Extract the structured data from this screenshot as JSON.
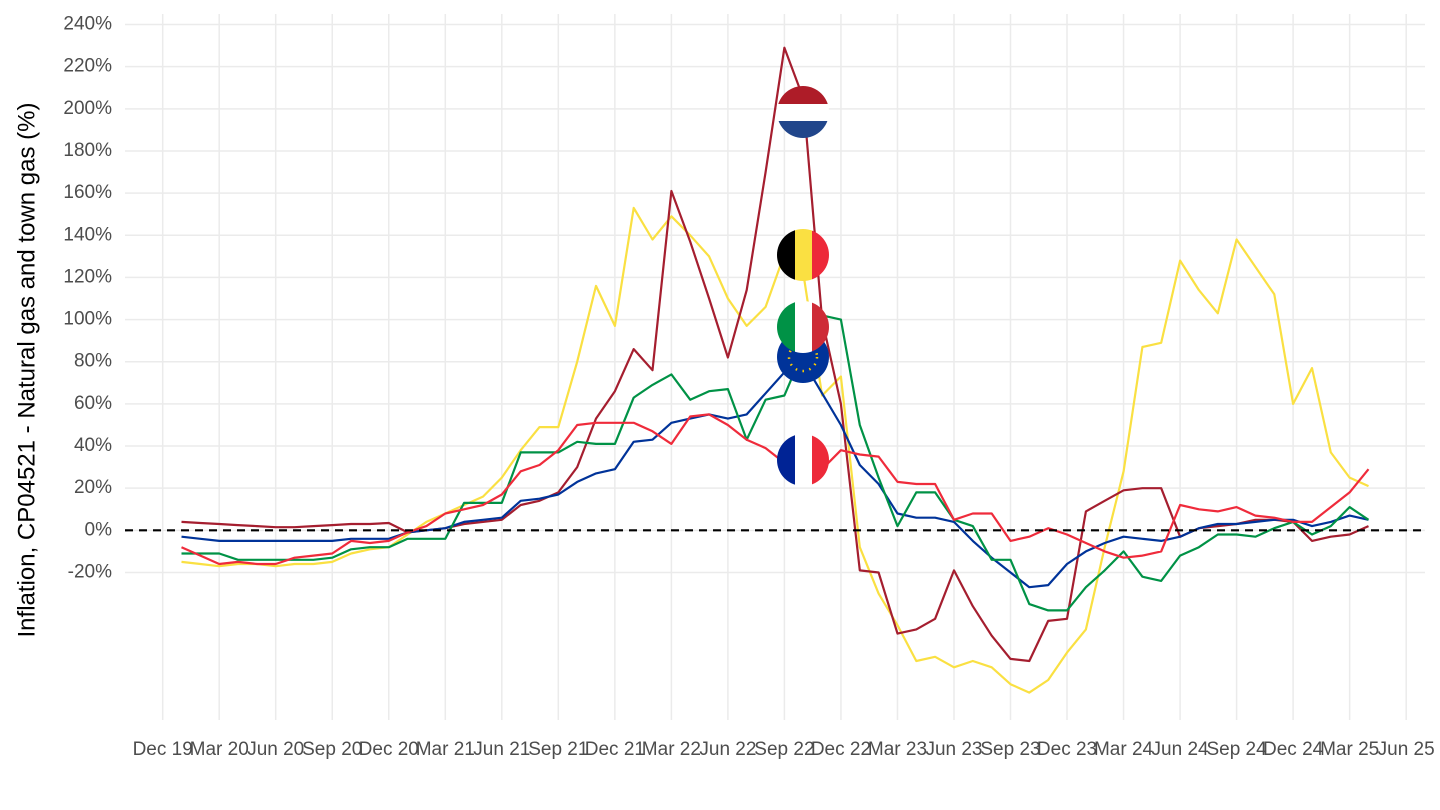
{
  "chart_data": {
    "type": "line",
    "y_label": "Inflation, CP04521 - Natural gas and town gas (%)",
    "x": [
      "2020-01",
      "2020-02",
      "2020-03",
      "2020-04",
      "2020-05",
      "2020-06",
      "2020-07",
      "2020-08",
      "2020-09",
      "2020-10",
      "2020-11",
      "2020-12",
      "2021-01",
      "2021-02",
      "2021-03",
      "2021-04",
      "2021-05",
      "2021-06",
      "2021-07",
      "2021-08",
      "2021-09",
      "2021-10",
      "2021-11",
      "2021-12",
      "2022-01",
      "2022-02",
      "2022-03",
      "2022-04",
      "2022-05",
      "2022-06",
      "2022-07",
      "2022-08",
      "2022-09",
      "2022-10",
      "2022-11",
      "2022-12",
      "2023-01",
      "2023-02",
      "2023-03",
      "2023-04",
      "2023-05",
      "2023-06",
      "2023-07",
      "2023-08",
      "2023-09",
      "2023-10",
      "2023-11",
      "2023-12",
      "2024-01",
      "2024-02",
      "2024-03",
      "2024-04",
      "2024-05",
      "2024-06",
      "2024-07",
      "2024-08",
      "2024-09",
      "2024-10",
      "2024-11",
      "2024-12",
      "2025-01",
      "2025-02",
      "2025-03",
      "2025-04"
    ],
    "series": [
      {
        "color": "#fae042",
        "values": [
          -15,
          -16,
          -17,
          -16,
          -16,
          -17,
          -16,
          -16,
          -15,
          -11,
          -9,
          -8,
          -2,
          4,
          8,
          12,
          16,
          25,
          38,
          49,
          49,
          80,
          116,
          97,
          153,
          138,
          149,
          140,
          130,
          110,
          97,
          106,
          131,
          122,
          64,
          73,
          -8,
          -30,
          -45,
          -62,
          -60,
          -65,
          -62,
          -65,
          -73,
          -77,
          -71,
          -58,
          -47,
          -8,
          28,
          87,
          89,
          128,
          114,
          103,
          138,
          125,
          112,
          60,
          77,
          37,
          25,
          21
        ]
      },
      {
        "color": "#a51e2f",
        "values": [
          4,
          3.5,
          3,
          2.5,
          2,
          1.5,
          1.5,
          2,
          2.5,
          3,
          3,
          3.5,
          -1,
          0,
          1,
          3,
          4,
          5,
          12,
          14,
          18,
          30,
          53,
          66,
          86,
          76,
          161,
          137,
          110,
          82,
          114,
          170,
          229,
          205,
          100,
          60,
          -19,
          -20,
          -49,
          -47,
          -42,
          -19,
          -36,
          -50,
          -61,
          -62,
          -43,
          -42,
          9,
          14,
          19,
          20,
          20,
          -3,
          1,
          2,
          3,
          5,
          5,
          4,
          -5,
          -3,
          -2,
          2
        ]
      },
      {
        "color": "#003399",
        "values": [
          -3,
          -4,
          -5,
          -5,
          -5,
          -5,
          -5,
          -5,
          -5,
          -4,
          -4,
          -4,
          -1,
          0,
          1,
          4,
          5,
          6,
          14,
          15,
          17,
          23,
          27,
          29,
          42,
          43,
          51,
          53,
          55,
          53,
          55,
          65,
          75,
          80,
          65,
          50,
          31,
          22,
          8,
          6,
          6,
          4,
          -5,
          -13,
          -20,
          -27,
          -26,
          -16,
          -10,
          -6,
          -3,
          -4,
          -5,
          -3,
          1,
          3,
          3,
          4,
          5,
          5,
          2,
          4,
          7,
          5
        ]
      },
      {
        "color": "#009246",
        "values": [
          -11,
          -11,
          -11,
          -14,
          -14,
          -14,
          -14,
          -14,
          -13,
          -9,
          -8,
          -8,
          -4,
          -4,
          -4,
          13,
          13,
          13,
          37,
          37,
          37,
          42,
          41,
          41,
          63,
          69,
          74,
          62,
          66,
          67,
          43,
          62,
          64,
          85,
          102,
          100,
          50,
          25,
          2,
          18,
          18,
          5,
          2,
          -14,
          -14,
          -35,
          -38,
          -38,
          -27,
          -19,
          -10,
          -22,
          -24,
          -12,
          -8,
          -2,
          -2,
          -3,
          1,
          4,
          -2,
          2,
          11,
          5
        ]
      },
      {
        "color": "#ef2b3b",
        "values": [
          -8,
          -12,
          -16,
          -15,
          -16,
          -16,
          -13,
          -12,
          -11,
          -5,
          -6,
          -5,
          -1,
          2,
          8,
          10,
          12,
          17,
          28,
          31,
          38,
          50,
          51,
          51,
          51,
          47,
          41,
          54,
          55,
          50,
          43,
          39,
          32,
          32,
          29,
          38,
          36,
          35,
          23,
          22,
          22,
          5,
          8,
          8,
          -5,
          -3,
          1,
          -2,
          -6,
          -10,
          -13,
          -12,
          -10,
          12,
          10,
          9,
          11,
          7,
          6,
          4,
          4,
          11,
          18,
          29
        ]
      }
    ],
    "xlim": [
      "2019-10",
      "2025-07"
    ],
    "xticks": [
      {
        "value": "2019-12",
        "label": "Dec 19"
      },
      {
        "value": "2020-03",
        "label": "Mar 20"
      },
      {
        "value": "2020-06",
        "label": "Jun 20"
      },
      {
        "value": "2020-09",
        "label": "Sep 20"
      },
      {
        "value": "2020-12",
        "label": "Dec 20"
      },
      {
        "value": "2021-03",
        "label": "Mar 21"
      },
      {
        "value": "2021-06",
        "label": "Jun 21"
      },
      {
        "value": "2021-09",
        "label": "Sep 21"
      },
      {
        "value": "2021-12",
        "label": "Dec 21"
      },
      {
        "value": "2022-03",
        "label": "Mar 22"
      },
      {
        "value": "2022-06",
        "label": "Jun 22"
      },
      {
        "value": "2022-09",
        "label": "Sep 22"
      },
      {
        "value": "2022-12",
        "label": "Dec 22"
      },
      {
        "value": "2023-03",
        "label": "Mar 23"
      },
      {
        "value": "2023-06",
        "label": "Jun 23"
      },
      {
        "value": "2023-09",
        "label": "Sep 23"
      },
      {
        "value": "2023-12",
        "label": "Dec 23"
      },
      {
        "value": "2024-03",
        "label": "Mar 24"
      },
      {
        "value": "2024-06",
        "label": "Jun 24"
      },
      {
        "value": "2024-09",
        "label": "Sep 24"
      },
      {
        "value": "2024-12",
        "label": "Dec 24"
      },
      {
        "value": "2025-03",
        "label": "Mar 25"
      },
      {
        "value": "2025-06",
        "label": "Jun 25"
      }
    ],
    "ylim": [
      -90,
      245
    ],
    "yticks": [
      {
        "value": -20,
        "label": "-20%"
      },
      {
        "value": 0,
        "label": "0%"
      },
      {
        "value": 20,
        "label": "20%"
      },
      {
        "value": 40,
        "label": "40%"
      },
      {
        "value": 60,
        "label": "60%"
      },
      {
        "value": 80,
        "label": "80%"
      },
      {
        "value": 100,
        "label": "100%"
      },
      {
        "value": 120,
        "label": "120%"
      },
      {
        "value": 140,
        "label": "140%"
      },
      {
        "value": 160,
        "label": "160%"
      },
      {
        "value": 180,
        "label": "180%"
      },
      {
        "value": 200,
        "label": "200%"
      },
      {
        "value": 220,
        "label": "220%"
      },
      {
        "value": 240,
        "label": "240%"
      }
    ],
    "reference_line": 0,
    "grid": true
  }
}
